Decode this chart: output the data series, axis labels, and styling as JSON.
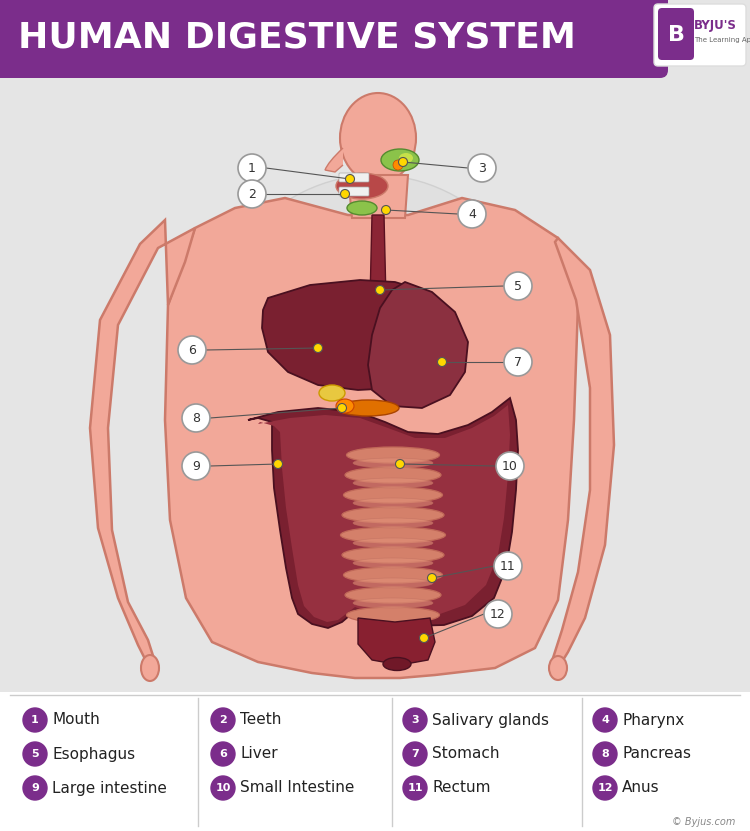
{
  "title": "HUMAN DIGESTIVE SYSTEM",
  "bg_color": "#e5e5e5",
  "header_color": "#7B2D8B",
  "body_skin_color": "#F2A899",
  "body_skin_dark": "#E89080",
  "body_outline_color": "#CC7A6A",
  "esophagus_color": "#8B2535",
  "liver_color": "#7A2030",
  "stomach_color": "#8B3040",
  "large_intestine_color": "#7A2030",
  "small_intestine_color": "#D4806A",
  "green_color": "#8BC34A",
  "yellow_color": "#FFC107",
  "orange_color": "#E65100",
  "dot_color": "#FFD700",
  "dot_edge": "#555555",
  "line_color": "#555555",
  "glow_color": "#DCDCDC",
  "legend_bg": "#FFFFFF",
  "legend_div_color": "#CCCCCC",
  "circle_color": "#7B2D8B",
  "label_circle_fc": "#FFFFFF",
  "label_circle_ec": "#999999",
  "label_text_color": "#333333",
  "legend_items": [
    {
      "num": "1",
      "label": "Mouth"
    },
    {
      "num": "2",
      "label": "Teeth"
    },
    {
      "num": "3",
      "label": "Salivary glands"
    },
    {
      "num": "4",
      "label": "Pharynx"
    },
    {
      "num": "5",
      "label": "Esophagus"
    },
    {
      "num": "6",
      "label": "Liver"
    },
    {
      "num": "7",
      "label": "Stomach"
    },
    {
      "num": "8",
      "label": "Pancreas"
    },
    {
      "num": "9",
      "label": "Large intestine"
    },
    {
      "num": "10",
      "label": "Small Intestine"
    },
    {
      "num": "11",
      "label": "Rectum"
    },
    {
      "num": "12",
      "label": "Anus"
    }
  ],
  "copyright": "© Byjus.com"
}
